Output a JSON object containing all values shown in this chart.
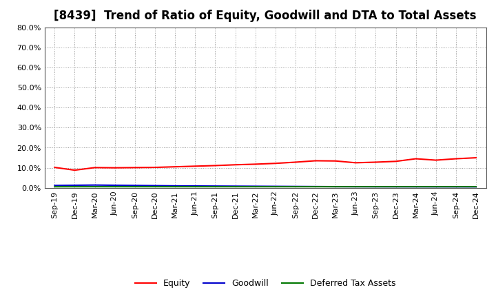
{
  "title": "[8439]  Trend of Ratio of Equity, Goodwill and DTA to Total Assets",
  "x_labels": [
    "Sep-19",
    "Dec-19",
    "Mar-20",
    "Jun-20",
    "Sep-20",
    "Dec-20",
    "Mar-21",
    "Jun-21",
    "Sep-21",
    "Dec-21",
    "Mar-22",
    "Jun-22",
    "Sep-22",
    "Dec-22",
    "Mar-23",
    "Jun-23",
    "Sep-23",
    "Dec-23",
    "Mar-24",
    "Jun-24",
    "Sep-24",
    "Dec-24"
  ],
  "equity": [
    10.2,
    8.8,
    10.1,
    10.0,
    10.1,
    10.2,
    10.5,
    10.8,
    11.1,
    11.5,
    11.8,
    12.2,
    12.8,
    13.5,
    13.4,
    12.5,
    12.8,
    13.2,
    14.5,
    13.8,
    14.5,
    15.0
  ],
  "goodwill": [
    1.2,
    1.3,
    1.4,
    1.3,
    1.2,
    1.1,
    1.0,
    0.95,
    0.9,
    0.85,
    0.8,
    0.75,
    0.7,
    0.65,
    0.6,
    0.58,
    0.56,
    0.55,
    0.54,
    0.53,
    0.52,
    0.51
  ],
  "dta": [
    0.55,
    0.57,
    0.58,
    0.58,
    0.58,
    0.58,
    0.58,
    0.58,
    0.58,
    0.58,
    0.58,
    0.58,
    0.58,
    0.58,
    0.58,
    0.58,
    0.58,
    0.58,
    0.58,
    0.58,
    0.58,
    0.58
  ],
  "equity_color": "#ff0000",
  "goodwill_color": "#0000cc",
  "dta_color": "#007700",
  "background_color": "#ffffff",
  "plot_bg_color": "#ffffff",
  "grid_color": "#999999",
  "ylim": [
    0.0,
    80.0
  ],
  "yticks": [
    0.0,
    10.0,
    20.0,
    30.0,
    40.0,
    50.0,
    60.0,
    70.0,
    80.0
  ],
  "title_fontsize": 12,
  "legend_fontsize": 9,
  "tick_fontsize": 8
}
